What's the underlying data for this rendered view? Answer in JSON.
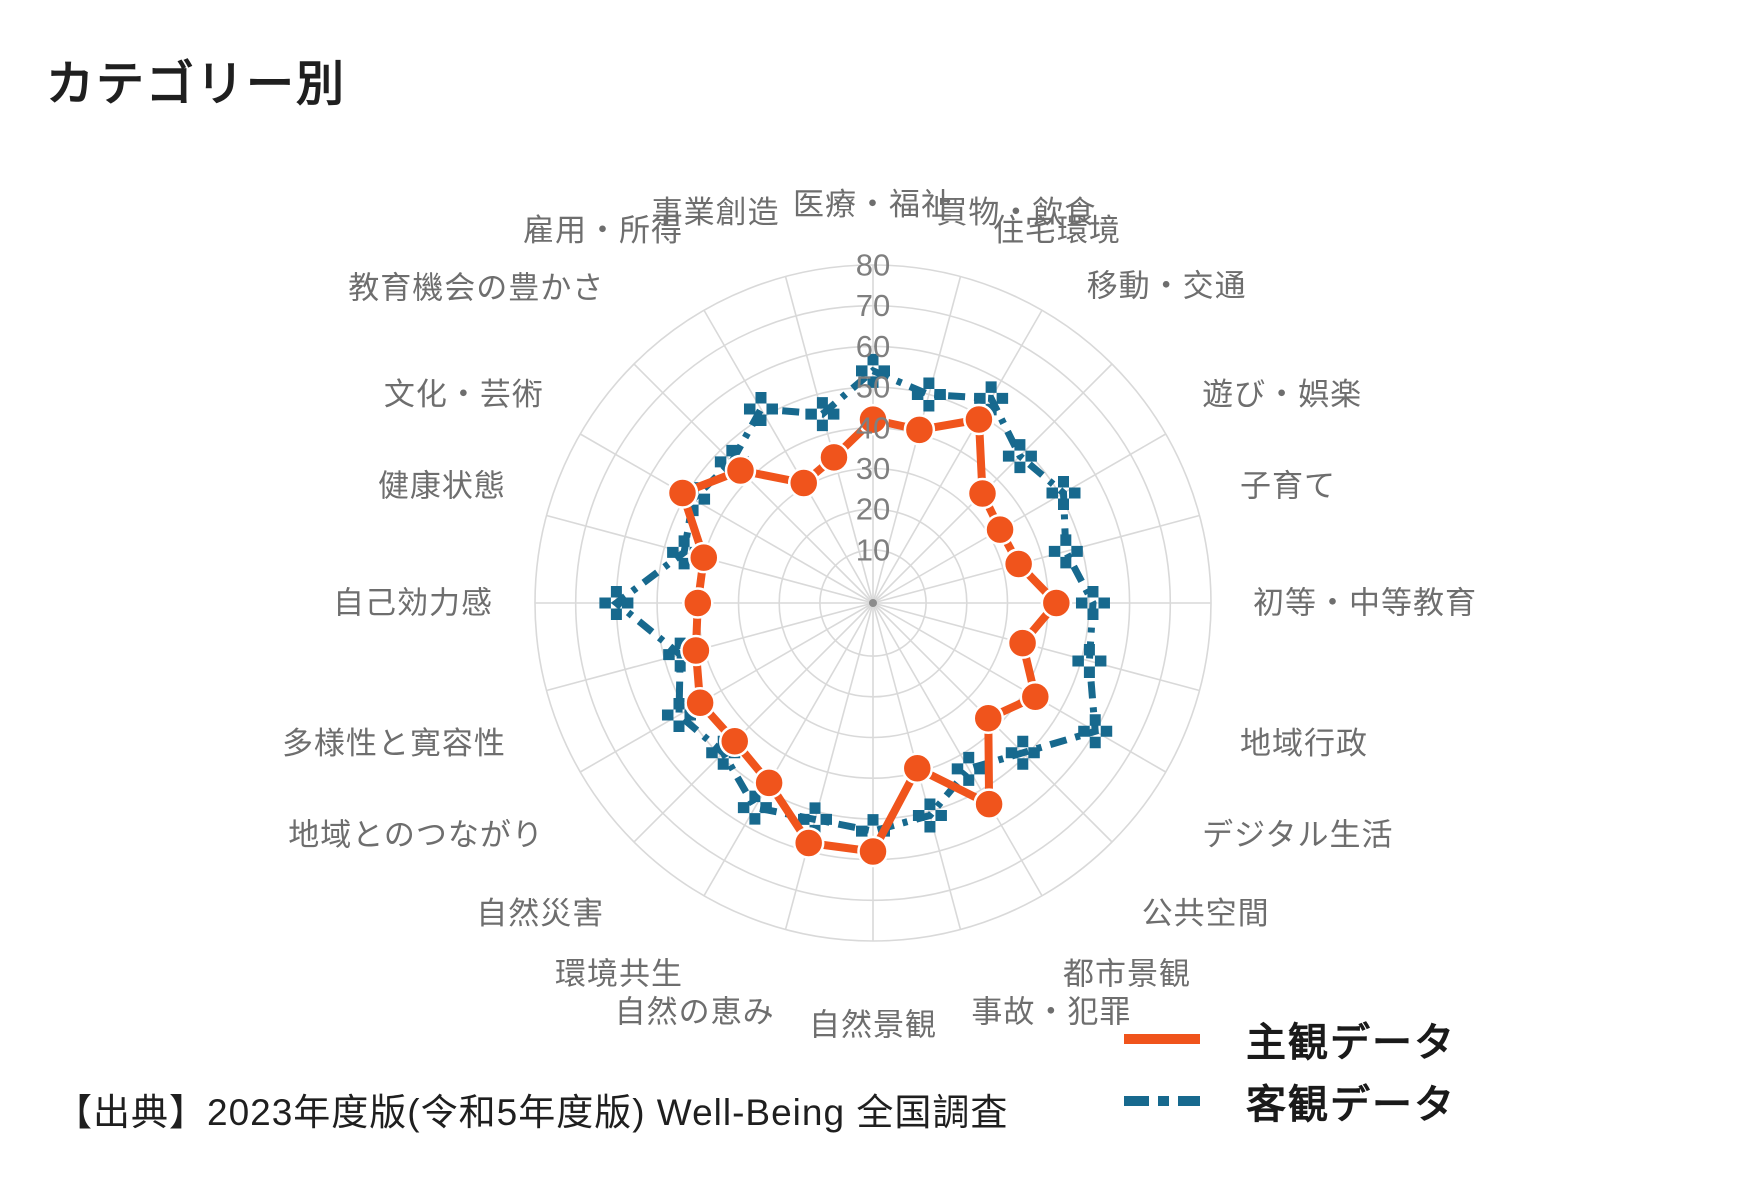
{
  "page": {
    "title": "カテゴリー別",
    "source": "【出典】2023年度版(令和5年度版) Well-Being 全国調査"
  },
  "legend": {
    "items": [
      {
        "label": "主観データ",
        "color": "#F0541C",
        "style": "solid"
      },
      {
        "label": "客観データ",
        "color": "#17698E",
        "style": "dash-dot"
      }
    ]
  },
  "chart_data": {
    "type": "radar",
    "title": "カテゴリー別",
    "categories": [
      "医療・福祉",
      "買物・飲食",
      "住宅環境",
      "移動・交通",
      "遊び・娯楽",
      "子育て",
      "初等・中等教育",
      "地域行政",
      "デジタル生活",
      "公共空間",
      "都市景観",
      "事故・犯罪",
      "自然景観",
      "自然の恵み",
      "環境共生",
      "自然災害",
      "地域とのつながり",
      "多様性と寛容性",
      "自己効力感",
      "健康状態",
      "文化・芸術",
      "教育機会の豊かさ",
      "雇用・所得",
      "事業創造"
    ],
    "series": [
      {
        "name": "主観データ",
        "color": "#F0541C",
        "line": "solid",
        "marker": "circle",
        "values": [
          42,
          41,
          49,
          35,
          33,
          34,
          42,
          35,
          43,
          37,
          54,
          39,
          58,
          58,
          48,
          45,
          46,
          42,
          40,
          40,
          51,
          43,
          31,
          34
        ]
      },
      {
        "name": "客観データ",
        "color": "#17698E",
        "line": "dash-dot",
        "marker": "plus",
        "values": [
          54,
          50,
          55,
          48,
          51,
          46,
          51,
          52,
          60,
          49,
          44,
          51,
          53,
          52,
          55,
          49,
          52,
          46,
          60,
          45,
          48,
          46,
          52,
          45
        ]
      }
    ],
    "r_axis": {
      "min": 0,
      "max": 80,
      "ticks": [
        10,
        20,
        30,
        40,
        50,
        60,
        70,
        80
      ]
    },
    "layout": {
      "start_angle_deg": 90,
      "direction": "clockwise",
      "grid": true,
      "legend_position": "lower-right"
    },
    "colors": {
      "grid": "#D9D9D9",
      "tick_label": "#7F7F7F",
      "category_label": "#6E6E6E",
      "center_dot": "#8C8C8C"
    }
  }
}
